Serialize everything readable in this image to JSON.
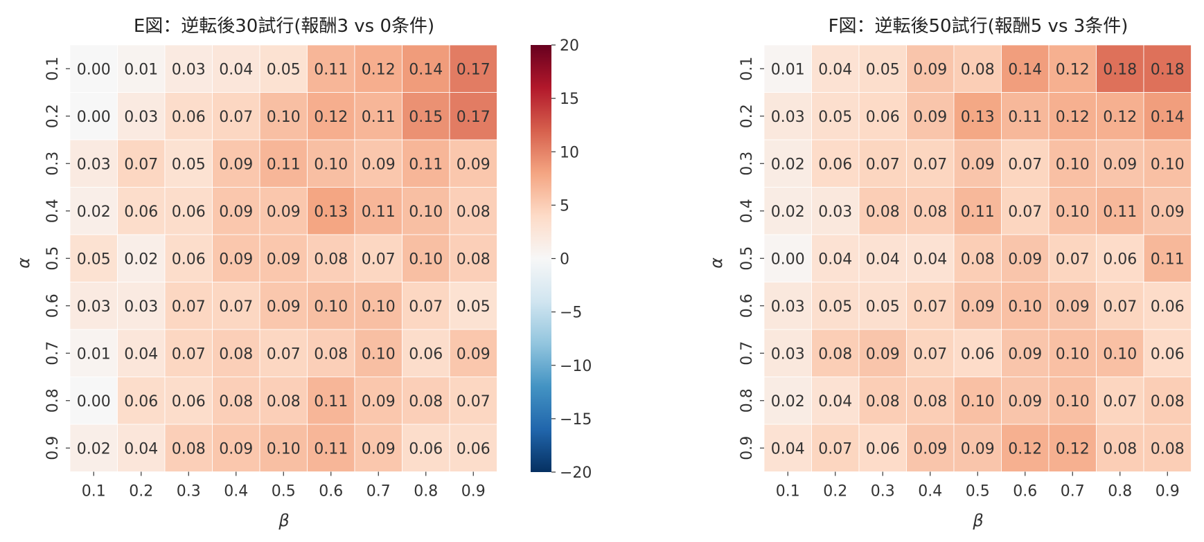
{
  "colorbar": {
    "min": -20,
    "max": 20,
    "ticks": [
      20,
      15,
      10,
      5,
      0,
      -5,
      -10,
      -15,
      -20
    ],
    "colormap": "RdBu_r",
    "colors": {
      "low": "#053061",
      "mid_low": "#4393c3",
      "center": "#f7f7f7",
      "mid_high": "#f4a582",
      "high": "#67001f"
    }
  },
  "chart_data": [
    {
      "type": "heatmap",
      "title": "E図：逆転後30試行(報酬3 vs 0条件)",
      "xlabel": "β",
      "ylabel": "α",
      "x_categories": [
        "0.1",
        "0.2",
        "0.3",
        "0.4",
        "0.5",
        "0.6",
        "0.7",
        "0.8",
        "0.9"
      ],
      "y_categories": [
        "0.1",
        "0.2",
        "0.3",
        "0.4",
        "0.5",
        "0.6",
        "0.7",
        "0.8",
        "0.9"
      ],
      "labels": [
        [
          "0.00",
          "0.01",
          "0.03",
          "0.04",
          "0.05",
          "0.11",
          "0.12",
          "0.14",
          "0.17"
        ],
        [
          "0.00",
          "0.03",
          "0.06",
          "0.07",
          "0.10",
          "0.12",
          "0.11",
          "0.15",
          "0.17"
        ],
        [
          "0.03",
          "0.07",
          "0.05",
          "0.09",
          "0.11",
          "0.10",
          "0.09",
          "0.11",
          "0.09"
        ],
        [
          "0.02",
          "0.06",
          "0.06",
          "0.09",
          "0.09",
          "0.13",
          "0.11",
          "0.10",
          "0.08"
        ],
        [
          "0.05",
          "0.02",
          "0.06",
          "0.09",
          "0.09",
          "0.08",
          "0.07",
          "0.10",
          "0.08"
        ],
        [
          "0.03",
          "0.03",
          "0.07",
          "0.07",
          "0.09",
          "0.10",
          "0.10",
          "0.07",
          "0.05"
        ],
        [
          "0.01",
          "0.04",
          "0.07",
          "0.08",
          "0.07",
          "0.08",
          "0.10",
          "0.06",
          "0.09"
        ],
        [
          "0.00",
          "0.06",
          "0.06",
          "0.08",
          "0.08",
          "0.11",
          "0.09",
          "0.08",
          "0.07"
        ],
        [
          "0.02",
          "0.04",
          "0.08",
          "0.09",
          "0.10",
          "0.11",
          "0.09",
          "0.06",
          "0.06"
        ]
      ]
    },
    {
      "type": "heatmap",
      "title": "F図：逆転後50試行(報酬5 vs 3条件)",
      "xlabel": "β",
      "ylabel": "α",
      "x_categories": [
        "0.1",
        "0.2",
        "0.3",
        "0.4",
        "0.5",
        "0.6",
        "0.7",
        "0.8",
        "0.9"
      ],
      "y_categories": [
        "0.1",
        "0.2",
        "0.3",
        "0.4",
        "0.5",
        "0.6",
        "0.7",
        "0.8",
        "0.9"
      ],
      "labels": [
        [
          "0.01",
          "0.04",
          "0.05",
          "0.09",
          "0.08",
          "0.14",
          "0.12",
          "0.18",
          "0.18"
        ],
        [
          "0.03",
          "0.05",
          "0.06",
          "0.09",
          "0.13",
          "0.11",
          "0.12",
          "0.12",
          "0.14"
        ],
        [
          "0.02",
          "0.06",
          "0.07",
          "0.07",
          "0.09",
          "0.07",
          "0.10",
          "0.09",
          "0.10"
        ],
        [
          "0.02",
          "0.03",
          "0.08",
          "0.08",
          "0.11",
          "0.07",
          "0.10",
          "0.11",
          "0.09"
        ],
        [
          "0.00",
          "0.04",
          "0.04",
          "0.04",
          "0.08",
          "0.09",
          "0.07",
          "0.06",
          "0.11"
        ],
        [
          "0.03",
          "0.05",
          "0.05",
          "0.07",
          "0.09",
          "0.10",
          "0.09",
          "0.07",
          "0.06"
        ],
        [
          "0.03",
          "0.08",
          "0.09",
          "0.07",
          "0.06",
          "0.09",
          "0.10",
          "0.10",
          "0.06"
        ],
        [
          "0.02",
          "0.04",
          "0.08",
          "0.08",
          "0.10",
          "0.09",
          "0.10",
          "0.07",
          "0.08"
        ],
        [
          "0.04",
          "0.07",
          "0.06",
          "0.09",
          "0.09",
          "0.12",
          "0.12",
          "0.08",
          "0.08"
        ]
      ],
      "color_intensity": [
        [
          0.4,
          3.0,
          3.6,
          5.6,
          5.0,
          8.4,
          7.2,
          11.0,
          11.0
        ],
        [
          2.2,
          3.4,
          4.0,
          5.6,
          7.8,
          6.6,
          7.2,
          7.2,
          8.4
        ],
        [
          1.6,
          3.8,
          4.4,
          4.4,
          5.6,
          4.4,
          6.0,
          5.6,
          6.0
        ],
        [
          1.6,
          2.2,
          5.0,
          5.0,
          6.6,
          4.4,
          6.0,
          6.6,
          5.6
        ],
        [
          0.4,
          3.0,
          3.0,
          3.0,
          5.0,
          5.6,
          4.4,
          3.8,
          6.6
        ],
        [
          2.2,
          3.4,
          3.4,
          4.4,
          5.6,
          6.0,
          5.6,
          4.4,
          3.8
        ],
        [
          2.2,
          5.0,
          5.6,
          4.4,
          3.8,
          5.6,
          6.0,
          6.0,
          3.8
        ],
        [
          1.6,
          3.0,
          5.0,
          5.0,
          6.0,
          5.6,
          6.0,
          4.4,
          5.0
        ],
        [
          3.0,
          4.4,
          3.8,
          5.6,
          5.6,
          7.2,
          7.2,
          5.0,
          5.0
        ]
      ]
    }
  ]
}
